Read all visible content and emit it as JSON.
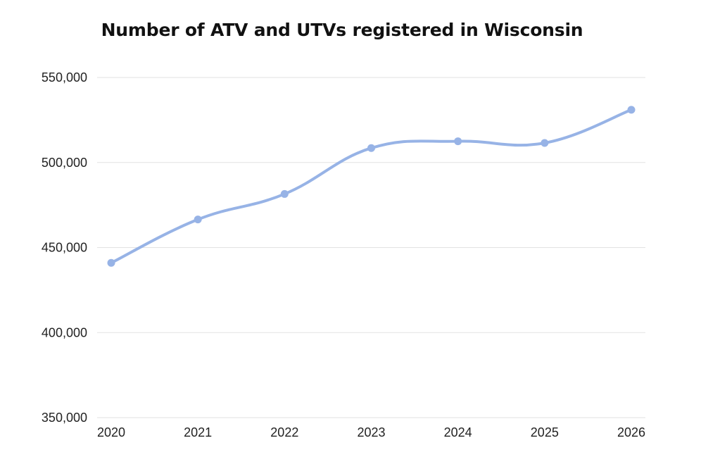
{
  "chart_data": {
    "type": "line",
    "title": "Number of ATV and UTVs registered in Wisconsin",
    "xlabel": "",
    "ylabel": "",
    "x": [
      "2020",
      "2021",
      "2022",
      "2023",
      "2024",
      "2025",
      "2026"
    ],
    "series": [
      {
        "values": [
          441000,
          466500,
          481500,
          508500,
          512500,
          511500,
          531000
        ]
      }
    ],
    "y_ticks": [
      350000,
      400000,
      450000,
      500000,
      550000
    ],
    "y_tick_labels": [
      "350,000",
      "400,000",
      "450,000",
      "500,000",
      "550,000"
    ],
    "ylim": [
      350000,
      550000
    ],
    "grid": true,
    "legend": "none",
    "line_color": "#97b3e6",
    "grid_color": "#e2e2e2"
  }
}
